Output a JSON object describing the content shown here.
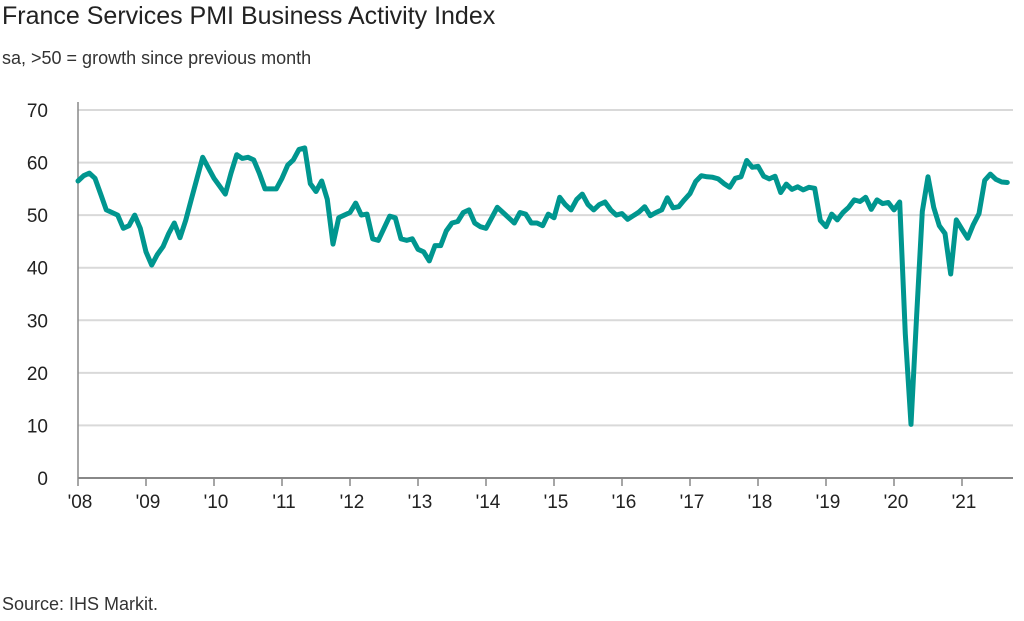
{
  "chart_data": {
    "type": "line",
    "title": "France Services PMI Business Activity Index",
    "subtitle": "sa, >50 = growth since previous month",
    "source": "Source: IHS Markit.",
    "xlabel": "",
    "ylabel": "",
    "ylim": [
      0,
      70
    ],
    "yticks": [
      "0",
      "10",
      "20",
      "30",
      "40",
      "50",
      "60",
      "70"
    ],
    "xticks": [
      "'08",
      "'09",
      "'10",
      "'11",
      "'12",
      "'13",
      "'14",
      "'15",
      "'16",
      "'17",
      "'18",
      "'19",
      "'20",
      "'21"
    ],
    "grid": "horizontal",
    "line_color": "#00968f",
    "x_start": "2008-01",
    "x_frequency": "monthly",
    "series": [
      {
        "values": [
          56.5,
          57.5,
          58,
          57,
          54,
          51,
          50.5,
          50,
          47.5,
          48,
          50,
          47.5,
          43,
          40.5,
          42.5,
          44,
          46.5,
          48.5,
          45.7,
          49,
          53,
          57,
          61,
          59,
          57,
          55.5,
          54,
          58,
          61.5,
          60.8,
          61,
          60.5,
          58,
          55,
          55,
          55,
          57,
          59.5,
          60.5,
          62.5,
          62.8,
          56,
          54.5,
          56.5,
          53,
          44.5,
          49.5,
          50,
          50.5,
          52.3,
          50,
          50.2,
          45.5,
          45.2,
          47.5,
          49.8,
          49.5,
          45.5,
          45.2,
          45.5,
          43.5,
          43,
          41.3,
          44.2,
          44.2,
          47,
          48.5,
          48.8,
          50.5,
          51,
          48.5,
          47.8,
          47.5,
          49.5,
          51.5,
          50.5,
          49.5,
          48.5,
          50.5,
          50.2,
          48.5,
          48.5,
          48,
          50.2,
          49.5,
          53.4,
          52,
          51,
          53,
          54,
          52,
          51,
          52,
          52.5,
          51,
          50,
          50.3,
          49.2,
          49.9,
          50.6,
          51.6,
          49.9,
          50.5,
          51,
          53.3,
          51.4,
          51.6,
          52.9,
          54.1,
          56.4,
          57.5,
          57.3,
          57.2,
          56.9,
          56,
          55.3,
          57,
          57.3,
          60.4,
          59.1,
          59.3,
          57.4,
          56.9,
          57.4,
          54.3,
          55.9,
          54.9,
          55.4,
          54.8,
          55.3,
          55.1,
          49,
          47.8,
          50.2,
          49.1,
          50.5,
          51.5,
          52.9,
          52.6,
          53.4,
          51.1,
          52.9,
          52.2,
          52.4,
          51,
          52.5,
          27.4,
          10.2,
          31.1,
          50.7,
          57.3,
          51.5,
          48,
          46.5,
          38.8,
          49.1,
          47.3,
          45.6,
          48.2,
          50.3,
          56.6,
          57.8,
          56.8,
          56.3,
          56.2
        ]
      }
    ]
  }
}
